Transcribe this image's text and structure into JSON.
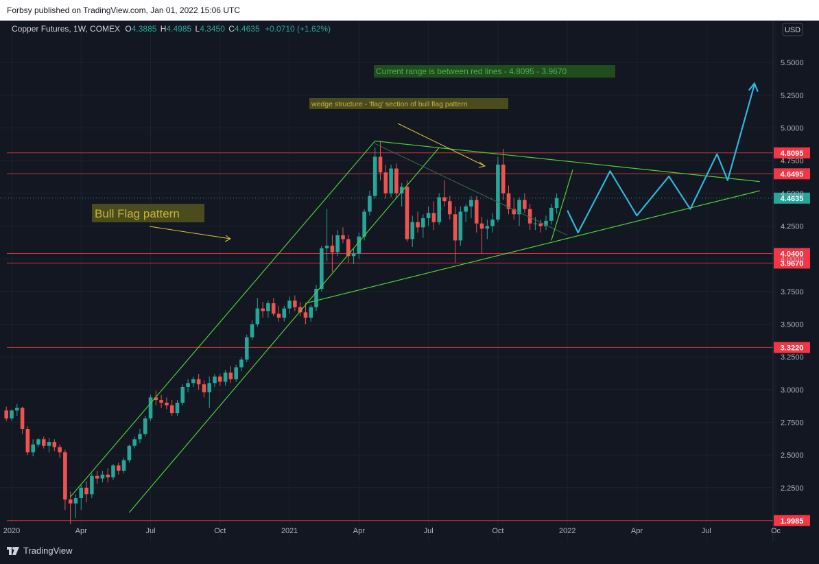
{
  "header": {
    "publisher_line": "Forbsy published on TradingView.com, Jan 01, 2022 15:06 UTC"
  },
  "legend": {
    "symbol": "Copper Futures, 1W, COMEX",
    "o_label": "O",
    "o": "4.3885",
    "h_label": "H",
    "h": "4.4985",
    "l_label": "L",
    "l": "4.3450",
    "c_label": "C",
    "c": "4.4635",
    "change": "+0.0710 (+1.62%)"
  },
  "currency": "USD",
  "footer": {
    "brand": "TradingView"
  },
  "colors": {
    "background": "#131722",
    "up": "#26a69a",
    "down": "#ef5350",
    "trend": "#4cd137",
    "projection": "#2fb8d8",
    "level": "#c8373b",
    "note_yellow": "#4b4c1e",
    "note_green": "#214d1e",
    "axis_text": "#b2b5be"
  },
  "chart_data": {
    "type": "candlestick",
    "title": "Copper Futures, 1W, COMEX",
    "ylim": [
      1.95,
      5.7
    ],
    "y_ticks": [
      2.25,
      2.5,
      2.75,
      3.0,
      3.25,
      3.5,
      3.75,
      4.0,
      4.25,
      4.5,
      4.75,
      5.0,
      5.25,
      5.5
    ],
    "x_ticks": [
      {
        "label": "2020",
        "t": 0
      },
      {
        "label": "Apr",
        "t": 13
      },
      {
        "label": "Jul",
        "t": 26
      },
      {
        "label": "Oct",
        "t": 39
      },
      {
        "label": "2021",
        "t": 52
      },
      {
        "label": "Apr",
        "t": 65
      },
      {
        "label": "Jul",
        "t": 78
      },
      {
        "label": "Oct",
        "t": 91
      },
      {
        "label": "2022",
        "t": 104
      },
      {
        "label": "Apr",
        "t": 117
      },
      {
        "label": "Jul",
        "t": 130
      },
      {
        "label": "Oc",
        "t": 143
      }
    ],
    "x_unit": "weeks since start of 2020",
    "horizontal_levels": [
      {
        "value": 4.8095,
        "label": "4.8095"
      },
      {
        "value": 4.6495,
        "label": "4.6495"
      },
      {
        "value": 4.04,
        "label": "4.0400"
      },
      {
        "value": 3.967,
        "label": "3.9670"
      },
      {
        "value": 3.322,
        "label": "3.3220"
      },
      {
        "value": 1.9985,
        "label": "1.9985"
      }
    ],
    "last_price": {
      "value": 4.4635,
      "label": "4.4635"
    },
    "candles": [
      {
        "t": -1,
        "o": 2.84,
        "h": 2.87,
        "l": 2.76,
        "c": 2.78
      },
      {
        "t": 0,
        "o": 2.78,
        "h": 2.85,
        "l": 2.76,
        "c": 2.84
      },
      {
        "t": 1,
        "o": 2.84,
        "h": 2.89,
        "l": 2.8,
        "c": 2.86
      },
      {
        "t": 2,
        "o": 2.86,
        "h": 2.87,
        "l": 2.66,
        "c": 2.7
      },
      {
        "t": 3,
        "o": 2.7,
        "h": 2.72,
        "l": 2.5,
        "c": 2.52
      },
      {
        "t": 4,
        "o": 2.52,
        "h": 2.62,
        "l": 2.49,
        "c": 2.58
      },
      {
        "t": 5,
        "o": 2.58,
        "h": 2.63,
        "l": 2.56,
        "c": 2.62
      },
      {
        "t": 6,
        "o": 2.62,
        "h": 2.64,
        "l": 2.55,
        "c": 2.57
      },
      {
        "t": 7,
        "o": 2.57,
        "h": 2.63,
        "l": 2.52,
        "c": 2.6
      },
      {
        "t": 8,
        "o": 2.6,
        "h": 2.62,
        "l": 2.53,
        "c": 2.56
      },
      {
        "t": 9,
        "o": 2.56,
        "h": 2.58,
        "l": 2.48,
        "c": 2.52
      },
      {
        "t": 10,
        "o": 2.52,
        "h": 2.54,
        "l": 2.08,
        "c": 2.16
      },
      {
        "t": 11,
        "o": 2.16,
        "h": 2.22,
        "l": 1.97,
        "c": 2.13
      },
      {
        "t": 12,
        "o": 2.13,
        "h": 2.2,
        "l": 2.02,
        "c": 2.17
      },
      {
        "t": 13,
        "o": 2.17,
        "h": 2.27,
        "l": 2.08,
        "c": 2.25
      },
      {
        "t": 14,
        "o": 2.25,
        "h": 2.3,
        "l": 2.14,
        "c": 2.2
      },
      {
        "t": 15,
        "o": 2.2,
        "h": 2.36,
        "l": 2.17,
        "c": 2.34
      },
      {
        "t": 16,
        "o": 2.34,
        "h": 2.38,
        "l": 2.28,
        "c": 2.32
      },
      {
        "t": 17,
        "o": 2.32,
        "h": 2.38,
        "l": 2.29,
        "c": 2.35
      },
      {
        "t": 18,
        "o": 2.35,
        "h": 2.4,
        "l": 2.29,
        "c": 2.33
      },
      {
        "t": 19,
        "o": 2.33,
        "h": 2.43,
        "l": 2.31,
        "c": 2.42
      },
      {
        "t": 20,
        "o": 2.42,
        "h": 2.44,
        "l": 2.35,
        "c": 2.38
      },
      {
        "t": 21,
        "o": 2.38,
        "h": 2.48,
        "l": 2.36,
        "c": 2.46
      },
      {
        "t": 22,
        "o": 2.46,
        "h": 2.58,
        "l": 2.44,
        "c": 2.57
      },
      {
        "t": 23,
        "o": 2.57,
        "h": 2.64,
        "l": 2.55,
        "c": 2.62
      },
      {
        "t": 24,
        "o": 2.62,
        "h": 2.7,
        "l": 2.59,
        "c": 2.66
      },
      {
        "t": 25,
        "o": 2.66,
        "h": 2.8,
        "l": 2.64,
        "c": 2.78
      },
      {
        "t": 26,
        "o": 2.78,
        "h": 2.96,
        "l": 2.76,
        "c": 2.94
      },
      {
        "t": 27,
        "o": 2.94,
        "h": 2.99,
        "l": 2.88,
        "c": 2.92
      },
      {
        "t": 28,
        "o": 2.92,
        "h": 2.96,
        "l": 2.86,
        "c": 2.9
      },
      {
        "t": 29,
        "o": 2.9,
        "h": 2.94,
        "l": 2.85,
        "c": 2.88
      },
      {
        "t": 30,
        "o": 2.88,
        "h": 2.92,
        "l": 2.8,
        "c": 2.82
      },
      {
        "t": 31,
        "o": 2.82,
        "h": 2.92,
        "l": 2.8,
        "c": 2.9
      },
      {
        "t": 32,
        "o": 2.9,
        "h": 3.04,
        "l": 2.88,
        "c": 3.02
      },
      {
        "t": 33,
        "o": 3.02,
        "h": 3.08,
        "l": 2.98,
        "c": 3.05
      },
      {
        "t": 34,
        "o": 3.05,
        "h": 3.1,
        "l": 3.02,
        "c": 3.08
      },
      {
        "t": 35,
        "o": 3.08,
        "h": 3.12,
        "l": 3.0,
        "c": 3.04
      },
      {
        "t": 36,
        "o": 3.04,
        "h": 3.07,
        "l": 2.94,
        "c": 2.98
      },
      {
        "t": 37,
        "o": 2.98,
        "h": 3.1,
        "l": 2.86,
        "c": 3.05
      },
      {
        "t": 38,
        "o": 3.05,
        "h": 3.12,
        "l": 3.02,
        "c": 3.1
      },
      {
        "t": 39,
        "o": 3.1,
        "h": 3.12,
        "l": 3.03,
        "c": 3.06
      },
      {
        "t": 40,
        "o": 3.06,
        "h": 3.15,
        "l": 3.03,
        "c": 3.13
      },
      {
        "t": 41,
        "o": 3.13,
        "h": 3.18,
        "l": 3.05,
        "c": 3.08
      },
      {
        "t": 42,
        "o": 3.08,
        "h": 3.19,
        "l": 3.06,
        "c": 3.17
      },
      {
        "t": 43,
        "o": 3.17,
        "h": 3.25,
        "l": 3.14,
        "c": 3.23
      },
      {
        "t": 44,
        "o": 3.23,
        "h": 3.42,
        "l": 3.21,
        "c": 3.4
      },
      {
        "t": 45,
        "o": 3.4,
        "h": 3.53,
        "l": 3.38,
        "c": 3.5
      },
      {
        "t": 46,
        "o": 3.5,
        "h": 3.7,
        "l": 3.48,
        "c": 3.62
      },
      {
        "t": 47,
        "o": 3.62,
        "h": 3.67,
        "l": 3.55,
        "c": 3.6
      },
      {
        "t": 48,
        "o": 3.6,
        "h": 3.68,
        "l": 3.55,
        "c": 3.66
      },
      {
        "t": 49,
        "o": 3.66,
        "h": 3.7,
        "l": 3.56,
        "c": 3.58
      },
      {
        "t": 50,
        "o": 3.58,
        "h": 3.64,
        "l": 3.52,
        "c": 3.55
      },
      {
        "t": 51,
        "o": 3.55,
        "h": 3.64,
        "l": 3.52,
        "c": 3.62
      },
      {
        "t": 52,
        "o": 3.62,
        "h": 3.71,
        "l": 3.58,
        "c": 3.68
      },
      {
        "t": 53,
        "o": 3.68,
        "h": 3.72,
        "l": 3.6,
        "c": 3.63
      },
      {
        "t": 54,
        "o": 3.63,
        "h": 3.67,
        "l": 3.56,
        "c": 3.59
      },
      {
        "t": 55,
        "o": 3.59,
        "h": 3.66,
        "l": 3.5,
        "c": 3.55
      },
      {
        "t": 56,
        "o": 3.55,
        "h": 3.65,
        "l": 3.52,
        "c": 3.63
      },
      {
        "t": 57,
        "o": 3.63,
        "h": 3.8,
        "l": 3.6,
        "c": 3.77
      },
      {
        "t": 58,
        "o": 3.77,
        "h": 4.1,
        "l": 3.75,
        "c": 4.08
      },
      {
        "t": 59,
        "o": 4.08,
        "h": 4.38,
        "l": 3.98,
        "c": 4.1
      },
      {
        "t": 60,
        "o": 4.1,
        "h": 4.18,
        "l": 3.9,
        "c": 4.05
      },
      {
        "t": 61,
        "o": 4.05,
        "h": 4.22,
        "l": 4.02,
        "c": 4.18
      },
      {
        "t": 62,
        "o": 4.18,
        "h": 4.24,
        "l": 4.12,
        "c": 4.15
      },
      {
        "t": 63,
        "o": 4.15,
        "h": 4.18,
        "l": 3.97,
        "c": 4.02
      },
      {
        "t": 64,
        "o": 4.02,
        "h": 4.08,
        "l": 3.96,
        "c": 4.04
      },
      {
        "t": 65,
        "o": 4.04,
        "h": 4.2,
        "l": 4.0,
        "c": 4.17
      },
      {
        "t": 66,
        "o": 4.17,
        "h": 4.38,
        "l": 4.14,
        "c": 4.36
      },
      {
        "t": 67,
        "o": 4.36,
        "h": 4.52,
        "l": 4.33,
        "c": 4.48
      },
      {
        "t": 68,
        "o": 4.48,
        "h": 4.85,
        "l": 4.46,
        "c": 4.78
      },
      {
        "t": 69,
        "o": 4.78,
        "h": 4.9,
        "l": 4.6,
        "c": 4.66
      },
      {
        "t": 70,
        "o": 4.66,
        "h": 4.72,
        "l": 4.46,
        "c": 4.5
      },
      {
        "t": 71,
        "o": 4.5,
        "h": 4.72,
        "l": 4.47,
        "c": 4.69
      },
      {
        "t": 72,
        "o": 4.69,
        "h": 4.73,
        "l": 4.46,
        "c": 4.5
      },
      {
        "t": 73,
        "o": 4.5,
        "h": 4.58,
        "l": 4.4,
        "c": 4.55
      },
      {
        "t": 74,
        "o": 4.55,
        "h": 4.6,
        "l": 4.13,
        "c": 4.15
      },
      {
        "t": 75,
        "o": 4.15,
        "h": 4.33,
        "l": 4.09,
        "c": 4.28
      },
      {
        "t": 76,
        "o": 4.28,
        "h": 4.36,
        "l": 4.2,
        "c": 4.24
      },
      {
        "t": 77,
        "o": 4.24,
        "h": 4.34,
        "l": 4.16,
        "c": 4.31
      },
      {
        "t": 78,
        "o": 4.31,
        "h": 4.4,
        "l": 4.25,
        "c": 4.35
      },
      {
        "t": 79,
        "o": 4.35,
        "h": 4.44,
        "l": 4.22,
        "c": 4.28
      },
      {
        "t": 80,
        "o": 4.28,
        "h": 4.5,
        "l": 4.26,
        "c": 4.47
      },
      {
        "t": 81,
        "o": 4.47,
        "h": 4.6,
        "l": 4.4,
        "c": 4.44
      },
      {
        "t": 82,
        "o": 4.44,
        "h": 4.48,
        "l": 4.3,
        "c": 4.34
      },
      {
        "t": 83,
        "o": 4.34,
        "h": 4.4,
        "l": 3.97,
        "c": 4.14
      },
      {
        "t": 84,
        "o": 4.14,
        "h": 4.4,
        "l": 4.1,
        "c": 4.36
      },
      {
        "t": 85,
        "o": 4.36,
        "h": 4.42,
        "l": 4.28,
        "c": 4.4
      },
      {
        "t": 86,
        "o": 4.4,
        "h": 4.48,
        "l": 4.31,
        "c": 4.45
      },
      {
        "t": 87,
        "o": 4.45,
        "h": 4.48,
        "l": 4.2,
        "c": 4.27
      },
      {
        "t": 88,
        "o": 4.27,
        "h": 4.32,
        "l": 4.04,
        "c": 4.23
      },
      {
        "t": 89,
        "o": 4.23,
        "h": 4.3,
        "l": 4.15,
        "c": 4.25
      },
      {
        "t": 90,
        "o": 4.25,
        "h": 4.35,
        "l": 4.2,
        "c": 4.3
      },
      {
        "t": 91,
        "o": 4.3,
        "h": 4.78,
        "l": 4.28,
        "c": 4.72
      },
      {
        "t": 92,
        "o": 4.72,
        "h": 4.84,
        "l": 4.45,
        "c": 4.5
      },
      {
        "t": 93,
        "o": 4.5,
        "h": 4.56,
        "l": 4.34,
        "c": 4.38
      },
      {
        "t": 94,
        "o": 4.38,
        "h": 4.46,
        "l": 4.3,
        "c": 4.34
      },
      {
        "t": 95,
        "o": 4.34,
        "h": 4.47,
        "l": 4.25,
        "c": 4.45
      },
      {
        "t": 96,
        "o": 4.45,
        "h": 4.5,
        "l": 4.35,
        "c": 4.38
      },
      {
        "t": 97,
        "o": 4.38,
        "h": 4.42,
        "l": 4.22,
        "c": 4.27
      },
      {
        "t": 98,
        "o": 4.27,
        "h": 4.32,
        "l": 4.22,
        "c": 4.27
      },
      {
        "t": 99,
        "o": 4.27,
        "h": 4.3,
        "l": 4.2,
        "c": 4.25
      },
      {
        "t": 100,
        "o": 4.25,
        "h": 4.33,
        "l": 4.22,
        "c": 4.29
      },
      {
        "t": 101,
        "o": 4.29,
        "h": 4.42,
        "l": 4.26,
        "c": 4.39
      },
      {
        "t": 102,
        "o": 4.3885,
        "h": 4.4985,
        "l": 4.345,
        "c": 4.4635
      }
    ],
    "trendlines": [
      {
        "name": "channel-upper",
        "points": [
          {
            "t": 11,
            "p": 2.18
          },
          {
            "t": 68,
            "p": 4.9
          }
        ]
      },
      {
        "name": "channel-lower",
        "points": [
          {
            "t": 22,
            "p": 2.06
          },
          {
            "t": 80,
            "p": 4.85
          }
        ]
      },
      {
        "name": "wedge-upper",
        "points": [
          {
            "t": 68,
            "p": 4.9
          },
          {
            "t": 140,
            "p": 4.59
          }
        ]
      },
      {
        "name": "wedge-lower",
        "points": [
          {
            "t": 55,
            "p": 3.66
          },
          {
            "t": 140,
            "p": 4.52
          }
        ]
      },
      {
        "name": "dotted-diagonal",
        "points": [
          {
            "t": 68,
            "p": 4.88
          },
          {
            "t": 104,
            "p": 4.18
          }
        ]
      }
    ],
    "projection": [
      {
        "t": 104,
        "p": 4.37
      },
      {
        "t": 106,
        "p": 4.2
      },
      {
        "t": 112,
        "p": 4.67
      },
      {
        "t": 117,
        "p": 4.33
      },
      {
        "t": 123,
        "p": 4.63
      },
      {
        "t": 127,
        "p": 4.38
      },
      {
        "t": 132,
        "p": 4.8
      },
      {
        "t": 134,
        "p": 4.6
      },
      {
        "t": 139,
        "p": 5.33
      }
    ],
    "annotations": [
      {
        "text": "Current range is between red lines - 4.8095 - 3.9670",
        "style": "green-box"
      },
      {
        "text": "wedge structure - 'flag' section of bull flag pattern",
        "style": "yellow-box"
      },
      {
        "text": "Bull Flag pattern",
        "style": "yellow-box-large"
      }
    ]
  }
}
